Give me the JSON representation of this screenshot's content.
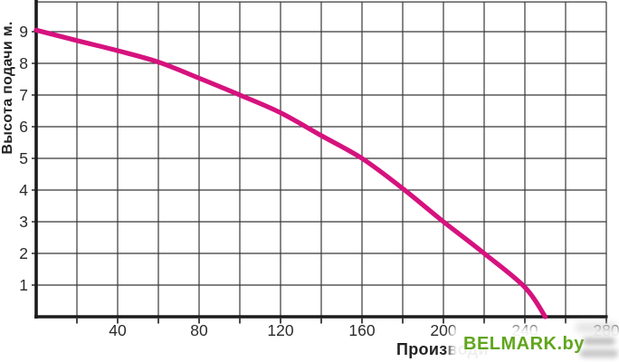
{
  "watermark": {
    "text": "BELMARK.by",
    "color": "#5fa51a"
  },
  "chart_data": {
    "type": "line",
    "title": "",
    "ylabel": "Высота подачи м.",
    "xlabel": "Производи",
    "xlim": [
      0,
      280
    ],
    "ylim": [
      0,
      9.94
    ],
    "x_ticks": [
      40,
      80,
      120,
      160,
      200,
      240,
      280
    ],
    "y_ticks": [
      1,
      2,
      3,
      4,
      5,
      6,
      7,
      8,
      9
    ],
    "x_grid_step": 20,
    "y_grid_step": 1,
    "grid": true,
    "legend": false,
    "colors": {
      "curve": "#d6127e",
      "grid": "#383838",
      "axis": "#1c1c1c",
      "tick_label": "#2b2b2b"
    },
    "series": [
      {
        "name": "pump-head-curve",
        "points": [
          [
            0,
            9.05
          ],
          [
            20,
            8.72
          ],
          [
            40,
            8.4
          ],
          [
            60,
            8.04
          ],
          [
            80,
            7.53
          ],
          [
            100,
            7.0
          ],
          [
            120,
            6.44
          ],
          [
            140,
            5.72
          ],
          [
            160,
            5.0
          ],
          [
            180,
            4.05
          ],
          [
            200,
            3.0
          ],
          [
            220,
            2.0
          ],
          [
            240,
            0.93
          ],
          [
            250,
            0
          ]
        ]
      }
    ]
  }
}
